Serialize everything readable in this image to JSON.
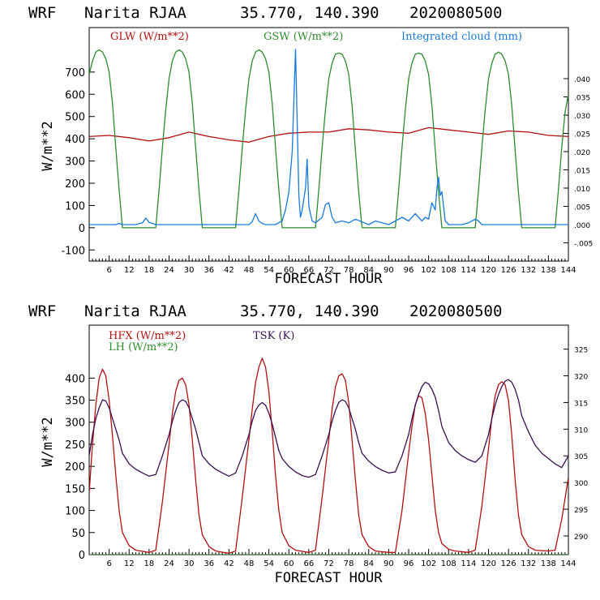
{
  "chart_data": [
    {
      "type": "line",
      "title_parts": [
        "WRF",
        "Narita RJAA",
        "35.770, 140.390",
        "2020080500"
      ],
      "xlabel": "FORECAST HOUR",
      "ylabel": "W/m**2",
      "xlim": [
        0,
        144
      ],
      "ylim": [
        -150,
        900
      ],
      "ylim_right": [
        -0.01,
        0.054
      ],
      "x_ticks": [
        6,
        12,
        18,
        24,
        30,
        36,
        42,
        48,
        54,
        60,
        66,
        72,
        78,
        84,
        90,
        96,
        102,
        108,
        114,
        120,
        126,
        132,
        138,
        144
      ],
      "y_ticks": [
        -100,
        0,
        100,
        200,
        300,
        400,
        500,
        600,
        700
      ],
      "y_right_ticks": [
        -0.005,
        0.0,
        0.005,
        0.01,
        0.015,
        0.02,
        0.025,
        0.03,
        0.035,
        0.04
      ],
      "y_right_tick_labels": [
        "-.005",
        ".000",
        ".005",
        ".010",
        ".015",
        ".020",
        ".025",
        ".030",
        ".035",
        ".040"
      ],
      "legend": [
        {
          "name": "GLW (W/m**2)",
          "color": "#b01010"
        },
        {
          "name": "GSW (W/m**2)",
          "color": "#2e8b2e"
        },
        {
          "name": "Integrated cloud (mm)",
          "color": "#1a7ad8"
        }
      ],
      "series": [
        {
          "name": "GLW",
          "color": "#b01010",
          "axis": "left",
          "x": [
            0,
            6,
            12,
            18,
            24,
            30,
            36,
            42,
            48,
            54,
            60,
            66,
            72,
            78,
            84,
            90,
            96,
            102,
            108,
            114,
            120,
            126,
            132,
            138,
            144
          ],
          "y": [
            410,
            415,
            405,
            390,
            405,
            430,
            410,
            395,
            385,
            410,
            425,
            430,
            430,
            445,
            440,
            430,
            425,
            450,
            440,
            430,
            420,
            435,
            430,
            415,
            410
          ]
        },
        {
          "name": "GSW",
          "color": "#2e8b2e",
          "axis": "left",
          "x": [
            0,
            1,
            2,
            3,
            4,
            5,
            6,
            7,
            8,
            9,
            10,
            20,
            21,
            22,
            23,
            24,
            25,
            26,
            27,
            28,
            29,
            30,
            31,
            32,
            33,
            34,
            44,
            45,
            46,
            47,
            48,
            49,
            50,
            51,
            52,
            53,
            54,
            55,
            56,
            57,
            58,
            68,
            69,
            70,
            71,
            72,
            73,
            74,
            75,
            76,
            77,
            78,
            79,
            80,
            81,
            82,
            92,
            93,
            94,
            95,
            96,
            97,
            98,
            99,
            100,
            101,
            102,
            103,
            104,
            105,
            106,
            116,
            117,
            118,
            119,
            120,
            121,
            122,
            123,
            124,
            125,
            126,
            127,
            128,
            129,
            130,
            140,
            141,
            142,
            143,
            144
          ],
          "y": [
            690,
            750,
            790,
            800,
            790,
            760,
            700,
            560,
            360,
            170,
            0,
            0,
            170,
            360,
            530,
            670,
            750,
            790,
            800,
            790,
            760,
            700,
            560,
            360,
            170,
            0,
            0,
            170,
            360,
            530,
            670,
            750,
            790,
            800,
            790,
            760,
            700,
            560,
            360,
            170,
            0,
            0,
            170,
            360,
            530,
            670,
            740,
            780,
            785,
            780,
            750,
            690,
            550,
            350,
            160,
            0,
            0,
            170,
            360,
            530,
            670,
            740,
            780,
            785,
            780,
            750,
            690,
            550,
            350,
            160,
            0,
            0,
            170,
            360,
            530,
            670,
            740,
            780,
            790,
            780,
            750,
            690,
            550,
            350,
            160,
            0,
            0,
            170,
            360,
            520,
            600
          ]
        },
        {
          "name": "Integrated cloud",
          "color": "#1a7ad8",
          "axis": "right",
          "x": [
            0,
            8,
            9,
            10,
            14,
            16,
            17,
            18,
            20,
            48,
            49,
            50,
            51,
            52,
            53,
            56,
            58,
            59,
            60,
            61,
            62,
            63,
            63.5,
            64,
            65,
            65.5,
            66,
            67,
            68,
            70,
            71,
            72,
            73,
            74,
            76,
            78,
            80,
            84,
            86,
            90,
            92,
            94,
            96,
            98,
            100,
            101,
            102,
            103,
            104,
            104.5,
            105,
            105.5,
            106,
            107,
            108,
            112,
            114,
            116,
            117,
            118,
            119,
            122,
            144
          ],
          "y": [
            0,
            0,
            0.0003,
            0,
            0,
            0.0005,
            0.0018,
            0.0006,
            0,
            0,
            0.0008,
            0.003,
            0.001,
            0.0003,
            0,
            0,
            0.001,
            0.004,
            0.009,
            0.02,
            0.048,
            0.008,
            0.002,
            0.004,
            0.01,
            0.018,
            0.005,
            0.001,
            0.0005,
            0.002,
            0.0055,
            0.006,
            0.002,
            0.0005,
            0.001,
            0.0005,
            0.0015,
            0,
            0.001,
            0,
            0.001,
            0.002,
            0.001,
            0.003,
            0.001,
            0.002,
            0.0015,
            0.006,
            0.004,
            0.01,
            0.013,
            0.008,
            0.009,
            0.001,
            0,
            0,
            0.0005,
            0.0015,
            0.001,
            0,
            0,
            0,
            0
          ]
        }
      ]
    },
    {
      "type": "line",
      "title_parts": [
        "WRF",
        "Narita RJAA",
        "35.770, 140.390",
        "2020080500"
      ],
      "xlabel": "FORECAST HOUR",
      "ylabel": "W/m**2",
      "xlim": [
        0,
        144
      ],
      "ylim": [
        0,
        520
      ],
      "ylim_right": [
        286.5,
        329.5
      ],
      "x_ticks": [
        6,
        12,
        18,
        24,
        30,
        36,
        42,
        48,
        54,
        60,
        66,
        72,
        78,
        84,
        90,
        96,
        102,
        108,
        114,
        120,
        126,
        132,
        138,
        144
      ],
      "y_ticks": [
        0,
        50,
        100,
        150,
        200,
        250,
        300,
        350,
        400
      ],
      "y_right_ticks": [
        290,
        295,
        300,
        305,
        310,
        315,
        320,
        325
      ],
      "y_right_tick_labels": [
        "290",
        "295",
        "300",
        "305",
        "310",
        "315",
        "320",
        "325"
      ],
      "legend": [
        {
          "name": "HFX (W/m**2)",
          "color": "#b01010"
        },
        {
          "name": "LH  (W/m**2)",
          "color": "#2e8b2e"
        },
        {
          "name": "TSK (K)",
          "color": "#3a1050"
        }
      ],
      "series": [
        {
          "name": "HFX",
          "color": "#b01010",
          "axis": "left",
          "x": [
            0,
            1,
            2,
            3,
            4,
            5,
            6,
            7,
            8,
            9,
            10,
            12,
            14,
            18,
            20,
            22,
            24,
            25,
            26,
            27,
            28,
            29,
            30,
            31,
            32,
            33,
            34,
            36,
            38,
            42,
            44,
            46,
            48,
            49,
            50,
            51,
            52,
            53,
            54,
            55,
            56,
            57,
            58,
            60,
            62,
            66,
            68,
            70,
            72,
            73,
            74,
            75,
            76,
            77,
            78,
            79,
            80,
            81,
            82,
            84,
            86,
            90,
            92,
            94,
            96,
            97,
            98,
            99,
            100,
            101,
            102,
            103,
            104,
            105,
            106,
            108,
            110,
            114,
            116,
            118,
            120,
            121,
            122,
            123,
            124,
            125,
            126,
            127,
            128,
            129,
            130,
            132,
            134,
            138,
            140,
            142,
            144
          ],
          "y": [
            140,
            250,
            340,
            400,
            420,
            405,
            350,
            270,
            180,
            100,
            50,
            20,
            10,
            5,
            10,
            120,
            250,
            320,
            370,
            395,
            400,
            385,
            340,
            260,
            170,
            90,
            45,
            18,
            8,
            3,
            8,
            130,
            260,
            330,
            390,
            425,
            445,
            425,
            370,
            280,
            180,
            100,
            50,
            20,
            10,
            5,
            10,
            130,
            260,
            330,
            380,
            405,
            410,
            395,
            345,
            260,
            170,
            90,
            45,
            18,
            8,
            5,
            5,
            100,
            230,
            290,
            340,
            360,
            355,
            320,
            260,
            180,
            100,
            50,
            25,
            12,
            8,
            5,
            10,
            110,
            240,
            310,
            360,
            385,
            392,
            385,
            350,
            270,
            170,
            90,
            45,
            18,
            10,
            8,
            10,
            80,
            175
          ]
        },
        {
          "name": "TSK",
          "color": "#3a1050",
          "axis": "right",
          "x": [
            0,
            1,
            2,
            3,
            4,
            5,
            6,
            7,
            8,
            9,
            10,
            12,
            14,
            16,
            18,
            20,
            22,
            24,
            25,
            26,
            27,
            28,
            29,
            30,
            31,
            32,
            33,
            34,
            36,
            38,
            40,
            42,
            44,
            46,
            48,
            49,
            50,
            51,
            52,
            53,
            54,
            55,
            56,
            57,
            58,
            60,
            62,
            64,
            66,
            68,
            70,
            72,
            73,
            74,
            75,
            76,
            77,
            78,
            79,
            80,
            81,
            82,
            84,
            86,
            88,
            90,
            92,
            94,
            96,
            97,
            98,
            99,
            100,
            101,
            102,
            103,
            104,
            105,
            106,
            108,
            110,
            112,
            114,
            116,
            118,
            120,
            121,
            122,
            123,
            124,
            125,
            126,
            127,
            128,
            129,
            130,
            132,
            134,
            136,
            138,
            140,
            142,
            144
          ],
          "y": [
            305,
            309,
            312,
            314,
            315.5,
            315.3,
            314,
            312,
            310,
            308,
            305.5,
            303.5,
            302.5,
            301.8,
            301.2,
            301.5,
            305,
            309,
            311.5,
            313.5,
            315,
            315.5,
            315.2,
            314,
            312,
            310,
            307.5,
            305,
            303.5,
            302.5,
            301.8,
            301.2,
            301.8,
            305,
            309,
            311.5,
            313.5,
            314.5,
            315,
            314.5,
            313,
            311,
            308.5,
            306,
            304.5,
            303,
            302,
            301.3,
            301,
            301.5,
            305,
            309,
            311.5,
            313.5,
            315,
            315.5,
            315.2,
            314,
            312,
            310,
            307.5,
            305.5,
            304,
            303,
            302.3,
            301.8,
            302,
            305,
            309,
            312,
            314.5,
            316.5,
            318,
            318.8,
            318.5,
            317.5,
            316,
            313.5,
            310.5,
            307.5,
            306,
            305,
            304.3,
            303.8,
            305,
            309,
            312,
            314.5,
            316.5,
            318,
            319,
            319.3,
            318.8,
            317.5,
            315.5,
            312.5,
            309.5,
            307,
            305.5,
            304.5,
            303.5,
            302.8,
            305
          ]
        },
        {
          "name": "LH",
          "color": "#2e8b2e",
          "axis": "left",
          "x": [
            0,
            144
          ],
          "y": [
            0,
            0
          ]
        }
      ]
    }
  ]
}
